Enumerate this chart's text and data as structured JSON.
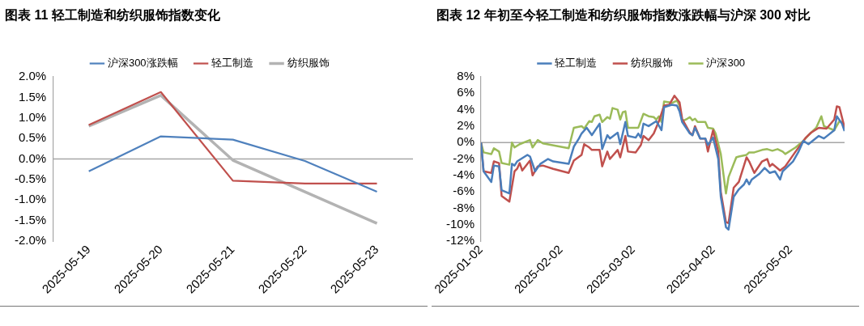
{
  "chart_data": [
    {
      "type": "line",
      "title": "图表 11 轻工制造和纺织服饰指数变化",
      "categories": [
        "2025-05-19",
        "2025-05-20",
        "2025-05-21",
        "2025-05-22",
        "2025-05-23"
      ],
      "series": [
        {
          "name": "沪深300涨跌幅",
          "color": "#4f81bd",
          "values": [
            -0.3,
            0.55,
            0.47,
            -0.05,
            -0.8
          ]
        },
        {
          "name": "轻工制造",
          "color": "#c0504d",
          "values": [
            0.83,
            1.63,
            -0.53,
            -0.6,
            -0.6
          ]
        },
        {
          "name": "纺织服饰",
          "color": "#b3b3b3",
          "values": [
            0.8,
            1.55,
            -0.03,
            -0.8,
            -1.57
          ]
        }
      ],
      "ylim": [
        -2,
        2
      ],
      "yticks": [
        {
          "value": -2,
          "label": "-2.0%"
        },
        {
          "value": -1.5,
          "label": "-1.5%"
        },
        {
          "value": -1,
          "label": "-1.0%"
        },
        {
          "value": -0.5,
          "label": "-0.5%"
        },
        {
          "value": 0,
          "label": "0.0%"
        },
        {
          "value": 0.5,
          "label": "0.5%"
        },
        {
          "value": 1,
          "label": "1.0%"
        },
        {
          "value": 1.5,
          "label": "1.5%"
        },
        {
          "value": 2,
          "label": "2.0%"
        }
      ],
      "ref_lines": [
        {
          "axis": "y",
          "value": 0,
          "color": "#a6a6a6"
        }
      ],
      "grid": false,
      "legend": "top",
      "marker": "none",
      "line_style": "solid"
    },
    {
      "type": "line",
      "title": "图表 12 年初至今轻工制造和纺织服饰指数涨跌幅与沪深 300 对比",
      "series": [
        {
          "name": "轻工制造",
          "color": "#4a7ebb",
          "x": [
            "2025-01-02",
            "2025-01-03",
            "2025-01-06",
            "2025-01-07",
            "2025-01-09",
            "2025-01-10",
            "2025-01-13",
            "2025-01-14",
            "2025-01-15",
            "2025-01-16",
            "2025-01-20",
            "2025-01-21",
            "2025-01-23",
            "2025-01-25",
            "2025-01-28",
            "2025-01-30",
            "2025-02-05",
            "2025-02-07",
            "2025-02-09",
            "2025-02-10",
            "2025-02-12",
            "2025-02-14",
            "2025-02-17",
            "2025-02-18",
            "2025-02-20",
            "2025-02-21",
            "2025-02-24",
            "2025-02-25",
            "2025-02-27",
            "2025-02-28",
            "2025-03-03",
            "2025-03-04",
            "2025-03-05",
            "2025-03-06",
            "2025-03-08",
            "2025-03-11",
            "2025-03-13",
            "2025-03-14",
            "2025-03-17",
            "2025-03-19",
            "2025-03-20",
            "2025-03-21",
            "2025-03-24",
            "2025-03-25",
            "2025-03-26",
            "2025-03-28",
            "2025-03-30",
            "2025-03-31",
            "2025-04-02",
            "2025-04-04",
            "2025-04-05",
            "2025-04-07",
            "2025-04-08",
            "2025-04-10",
            "2025-04-12",
            "2025-04-14",
            "2025-04-15",
            "2025-04-16",
            "2025-04-17",
            "2025-04-20",
            "2025-04-22",
            "2025-04-24",
            "2025-04-26",
            "2025-04-28",
            "2025-04-29",
            "2025-05-03",
            "2025-05-05",
            "2025-05-07",
            "2025-05-09",
            "2025-05-13",
            "2025-05-15",
            "2025-05-19",
            "2025-05-20",
            "2025-05-22",
            "2025-05-23"
          ],
          "values": [
            0,
            -3.5,
            -4.8,
            -2.8,
            -2.9,
            -5.8,
            -6.2,
            -2.6,
            -2.8,
            -2.3,
            -1.5,
            -1.7,
            -3.5,
            -2.6,
            -2.0,
            -2.3,
            -2.6,
            -0.5,
            0.5,
            1.1,
            1.8,
            0.9,
            2.3,
            -0.8,
            0.9,
            0.5,
            1.2,
            -0.2,
            2.5,
            0.8,
            0.6,
            1.1,
            0.6,
            2.3,
            2.0,
            2.6,
            1.5,
            4.3,
            4.6,
            4.5,
            3.8,
            2.5,
            1.1,
            0.9,
            1.8,
            0.5,
            0.5,
            -0.3,
            0.6,
            -2.0,
            -6.6,
            -10.3,
            -10.6,
            -6.6,
            -5.7,
            -5.1,
            -4.5,
            -5.1,
            -4.5,
            -3.8,
            -3.1,
            -3.7,
            -3.5,
            -4.5,
            -3.5,
            -2.3,
            -1.2,
            0.2,
            -0.2,
            0.8,
            0.5,
            1.5,
            3.2,
            2.3,
            1.4
          ]
        },
        {
          "name": "纺织服饰",
          "color": "#c0504d",
          "x": [
            "2025-01-02",
            "2025-01-03",
            "2025-01-06",
            "2025-01-07",
            "2025-01-09",
            "2025-01-10",
            "2025-01-13",
            "2025-01-15",
            "2025-01-16",
            "2025-01-17",
            "2025-01-18",
            "2025-01-21",
            "2025-01-22",
            "2025-01-24",
            "2025-01-26",
            "2025-01-30",
            "2025-02-05",
            "2025-02-07",
            "2025-02-10",
            "2025-02-11",
            "2025-02-13",
            "2025-02-14",
            "2025-02-17",
            "2025-02-18",
            "2025-02-20",
            "2025-02-21",
            "2025-02-24",
            "2025-02-25",
            "2025-02-27",
            "2025-02-28",
            "2025-03-03",
            "2025-03-05",
            "2025-03-06",
            "2025-03-08",
            "2025-03-10",
            "2025-03-12",
            "2025-03-14",
            "2025-03-16",
            "2025-03-18",
            "2025-03-20",
            "2025-03-21",
            "2025-03-24",
            "2025-03-25",
            "2025-03-26",
            "2025-03-28",
            "2025-03-30",
            "2025-03-31",
            "2025-04-02",
            "2025-04-04",
            "2025-04-05",
            "2025-04-07",
            "2025-04-08",
            "2025-04-10",
            "2025-04-12",
            "2025-04-15",
            "2025-04-16",
            "2025-04-18",
            "2025-04-21",
            "2025-04-23",
            "2025-04-24",
            "2025-04-25",
            "2025-04-28",
            "2025-04-30",
            "2025-05-04",
            "2025-05-08",
            "2025-05-10",
            "2025-05-13",
            "2025-05-16",
            "2025-05-19",
            "2025-05-20",
            "2025-05-21",
            "2025-05-23"
          ],
          "values": [
            0,
            -3.5,
            -3.7,
            -2.3,
            -2.5,
            -6.5,
            -7.2,
            -3.5,
            -3.2,
            -2.5,
            -3.4,
            -2.2,
            -4.0,
            -2.9,
            -2.8,
            -3.2,
            -3.7,
            -2.2,
            -1.5,
            -0.2,
            -0.6,
            -0.9,
            -0.9,
            -2.9,
            -1.1,
            -2.0,
            -0.9,
            -1.8,
            0.8,
            -1.1,
            -1.2,
            -0.3,
            0.8,
            0.3,
            1.1,
            2.6,
            4.5,
            4.6,
            5.7,
            4.9,
            2.9,
            1.2,
            0.9,
            2.0,
            0.5,
            0.5,
            -1.1,
            1.5,
            -1.1,
            -6.0,
            -9.7,
            -9.8,
            -5.5,
            -4.8,
            -1.8,
            -2.3,
            -3.7,
            -2.3,
            -2.0,
            -2.9,
            -2.6,
            -3.4,
            -2.9,
            -1.1,
            0.6,
            1.2,
            1.8,
            1.7,
            2.8,
            4.4,
            4.3,
            1.8
          ]
        },
        {
          "name": "沪深300",
          "color": "#9bbb59",
          "x": [
            "2025-01-02",
            "2025-01-03",
            "2025-01-06",
            "2025-01-07",
            "2025-01-09",
            "2025-01-10",
            "2025-01-13",
            "2025-01-14",
            "2025-01-15",
            "2025-01-17",
            "2025-01-21",
            "2025-01-22",
            "2025-01-24",
            "2025-01-26",
            "2025-02-05",
            "2025-02-07",
            "2025-02-10",
            "2025-02-11",
            "2025-02-13",
            "2025-02-14",
            "2025-02-15",
            "2025-02-17",
            "2025-02-18",
            "2025-02-20",
            "2025-02-21",
            "2025-02-22",
            "2025-02-24",
            "2025-02-25",
            "2025-02-26",
            "2025-02-27",
            "2025-02-28",
            "2025-03-04",
            "2025-03-06",
            "2025-03-08",
            "2025-03-10",
            "2025-03-11",
            "2025-03-12",
            "2025-03-13",
            "2025-03-14",
            "2025-03-16",
            "2025-03-17",
            "2025-03-19",
            "2025-03-20",
            "2025-03-21",
            "2025-03-23",
            "2025-03-24",
            "2025-03-25",
            "2025-03-26",
            "2025-03-27",
            "2025-03-30",
            "2025-03-31",
            "2025-04-02",
            "2025-04-03",
            "2025-04-05",
            "2025-04-07",
            "2025-04-08",
            "2025-04-11",
            "2025-04-12",
            "2025-04-15",
            "2025-04-16",
            "2025-04-18",
            "2025-04-21",
            "2025-04-23",
            "2025-04-25",
            "2025-04-27",
            "2025-04-29",
            "2025-04-30",
            "2025-05-04",
            "2025-05-07",
            "2025-05-09",
            "2025-05-12",
            "2025-05-14",
            "2025-05-15",
            "2025-05-19",
            "2025-05-21",
            "2025-05-22",
            "2025-05-23"
          ],
          "values": [
            0,
            -1.2,
            -1.4,
            -0.7,
            -1.1,
            -2.5,
            -2.7,
            0,
            -0.6,
            -0.2,
            0.3,
            -0.6,
            0.3,
            -0.1,
            -0.7,
            1.8,
            2.0,
            1.7,
            2.6,
            2.5,
            3.2,
            3.4,
            2.5,
            3.1,
            2.9,
            4.2,
            4.0,
            2.8,
            3.7,
            3.8,
            1.8,
            1.8,
            3.5,
            3.2,
            3.1,
            2.8,
            3.2,
            2.5,
            5.0,
            4.9,
            4.8,
            5.1,
            4.5,
            2.6,
            2.9,
            3.1,
            2.7,
            2.9,
            2.5,
            2.5,
            1.8,
            1.7,
            1.1,
            -1.4,
            -6.2,
            -4.2,
            -1.8,
            -1.7,
            -1.5,
            -1.2,
            -1.2,
            -0.9,
            -0.8,
            -1.0,
            -0.8,
            -1.1,
            -1.4,
            -0.6,
            0.2,
            0.9,
            1.8,
            3.2,
            2.0,
            1.5,
            2.6,
            2.5,
            1.7
          ]
        }
      ],
      "xlim": [
        "2025-01-02",
        "2025-05-23"
      ],
      "xticks": [
        "2025-01-02",
        "2025-02-02",
        "2025-03-02",
        "2025-04-02",
        "2025-05-02"
      ],
      "ylim": [
        -12,
        8
      ],
      "yticks": [
        {
          "value": -12,
          "label": "-12%"
        },
        {
          "value": -10,
          "label": "-10%"
        },
        {
          "value": -8,
          "label": "-8%"
        },
        {
          "value": -6,
          "label": "-6%"
        },
        {
          "value": -4,
          "label": "-4%"
        },
        {
          "value": -2,
          "label": "-2%"
        },
        {
          "value": 0,
          "label": "0%"
        },
        {
          "value": 2,
          "label": "2%"
        },
        {
          "value": 4,
          "label": "4%"
        },
        {
          "value": 6,
          "label": "6%"
        },
        {
          "value": 8,
          "label": "8%"
        }
      ],
      "ref_lines": [
        {
          "axis": "y",
          "value": 0,
          "color": "#a6a6a6"
        }
      ],
      "grid": false,
      "legend": "top",
      "marker": "none",
      "line_style": "solid"
    }
  ]
}
